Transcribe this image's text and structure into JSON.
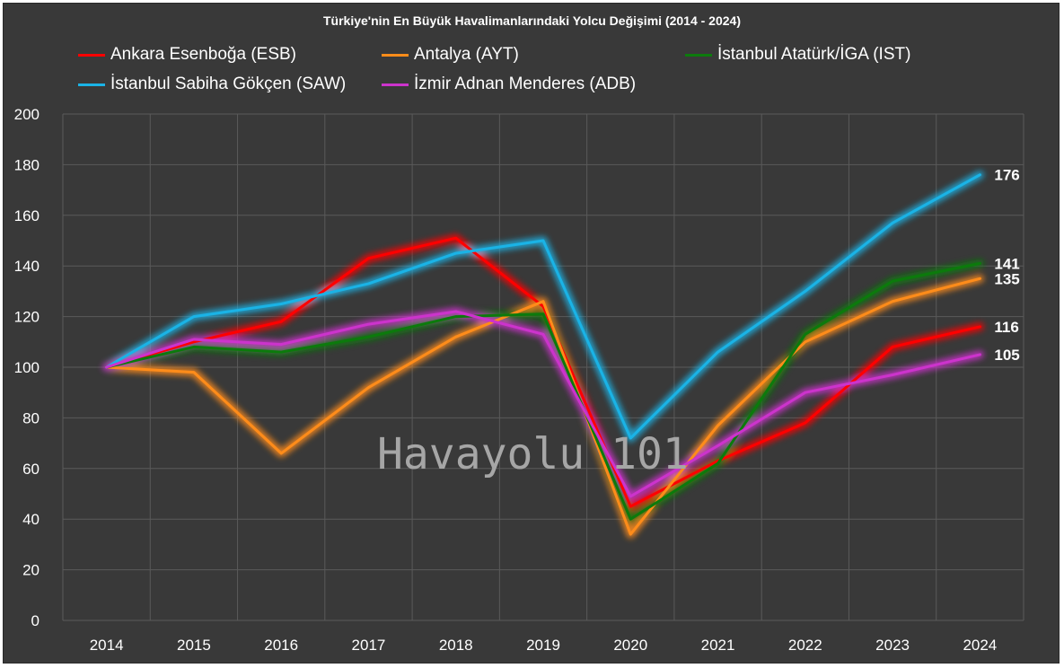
{
  "chart_data": {
    "type": "line",
    "title": "Türkiye'nin En Büyük Havalimanlarındaki Yolcu Değişimi (2014 - 2024)",
    "xlabel": "",
    "ylabel": "",
    "categories": [
      "2014",
      "2015",
      "2016",
      "2017",
      "2018",
      "2019",
      "2020",
      "2021",
      "2022",
      "2023",
      "2024"
    ],
    "ylim": [
      0,
      200
    ],
    "yticks": [
      0,
      20,
      40,
      60,
      80,
      100,
      120,
      140,
      160,
      180,
      200
    ],
    "grid": true,
    "legend_position": "top",
    "series": [
      {
        "name": "Ankara Esenboğa (ESB)",
        "color": "#ff0000",
        "values": [
          100,
          110,
          118,
          143,
          151,
          124,
          45,
          63,
          78,
          108,
          116
        ],
        "end_label": "116"
      },
      {
        "name": "Antalya (AYT)",
        "color": "#ff8c1a",
        "values": [
          100,
          98,
          66,
          92,
          112,
          126,
          34,
          77,
          110,
          126,
          135
        ],
        "end_label": "135"
      },
      {
        "name": "İstanbul Atatürk/İGA (IST)",
        "color": "#0c7a0c",
        "values": [
          100,
          108,
          106,
          112,
          120,
          121,
          40,
          62,
          113,
          134,
          141
        ],
        "end_label": "141"
      },
      {
        "name": "İstanbul Sabiha Gökçen (SAW)",
        "color": "#1ab3e6",
        "values": [
          100,
          120,
          125,
          133,
          145,
          150,
          72,
          106,
          130,
          157,
          176
        ],
        "end_label": "176"
      },
      {
        "name": "İzmir Adnan Menderes (ADB)",
        "color": "#cc33cc",
        "values": [
          100,
          111,
          109,
          117,
          122,
          113,
          49,
          69,
          90,
          97,
          105
        ],
        "end_label": "105"
      }
    ]
  },
  "watermark": "Havayolu 101"
}
